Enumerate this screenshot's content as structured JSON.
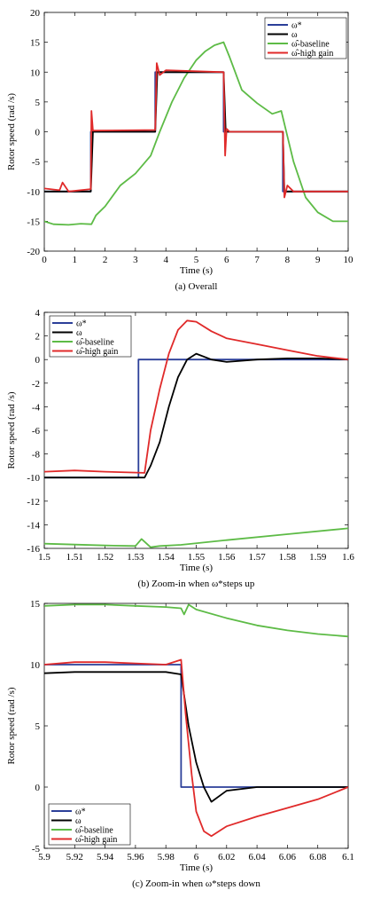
{
  "chart_data": [
    {
      "type": "line",
      "caption": "(a) Overall",
      "xlabel": "Time (s)",
      "ylabel": "Rotor speed (rad /s)",
      "xlim": [
        0,
        10
      ],
      "ylim": [
        -20,
        20
      ],
      "xticks": [
        0,
        1,
        2,
        3,
        4,
        5,
        6,
        7,
        8,
        9,
        10
      ],
      "yticks": [
        20,
        15,
        10,
        5,
        0,
        -5,
        -10,
        -15,
        -20
      ],
      "legend_position": "top-right",
      "grid": false,
      "series": [
        {
          "name": "ω*",
          "color": "#2b3f99",
          "x": [
            0,
            1.53,
            1.53,
            3.65,
            3.65,
            5.9,
            5.9,
            7.85,
            7.85,
            10
          ],
          "y": [
            -10,
            -10,
            0,
            0,
            10,
            10,
            0,
            0,
            -10,
            -10
          ]
        },
        {
          "name": "ω",
          "color": "#000000",
          "x": [
            0,
            1.53,
            1.6,
            3.65,
            3.72,
            5.9,
            5.97,
            7.85,
            7.9,
            10
          ],
          "y": [
            -10,
            -10,
            0,
            0,
            10,
            10,
            0,
            0,
            -10,
            -10
          ]
        },
        {
          "name": "ω̂-baseline",
          "color": "#5dbb46",
          "x": [
            0,
            0.3,
            0.8,
            1.2,
            1.55,
            1.7,
            2.0,
            2.5,
            3.0,
            3.5,
            3.8,
            4.2,
            4.6,
            5.0,
            5.3,
            5.6,
            5.9,
            6.1,
            6.5,
            7.0,
            7.5,
            7.8,
            8.2,
            8.6,
            9.0,
            9.5,
            10
          ],
          "y": [
            -15,
            -15.5,
            -15.6,
            -15.4,
            -15.5,
            -14,
            -12.5,
            -9,
            -7,
            -4,
            0,
            5,
            9,
            12,
            13.5,
            14.5,
            15,
            12.5,
            7,
            4.8,
            3,
            3.5,
            -5,
            -11,
            -13.5,
            -15,
            -15
          ]
        },
        {
          "name": "ω̂-high gain",
          "color": "#e02a2a",
          "x": [
            0,
            0.5,
            0.6,
            0.8,
            1.53,
            1.55,
            1.6,
            3.65,
            3.7,
            3.8,
            4.0,
            5.9,
            5.95,
            6.0,
            6.1,
            7.85,
            7.9,
            8.0,
            8.2,
            10
          ],
          "y": [
            -9.5,
            -9.8,
            -8.5,
            -10,
            -9.6,
            3.5,
            0.2,
            0.3,
            11.5,
            9.5,
            10.3,
            10,
            -4,
            0.5,
            0,
            0,
            -11,
            -9,
            -10,
            -10
          ]
        }
      ]
    },
    {
      "type": "line",
      "caption": "(b) Zoom-in when ω*steps up",
      "xlabel": "Time (s)",
      "ylabel": "Rotor speed (rad /s)",
      "xlim": [
        1.5,
        1.6
      ],
      "ylim": [
        -16,
        4
      ],
      "xticks": [
        1.5,
        1.51,
        1.52,
        1.53,
        1.54,
        1.55,
        1.56,
        1.57,
        1.58,
        1.59,
        1.6
      ],
      "yticks": [
        4,
        2,
        0,
        -2,
        -4,
        -6,
        -8,
        -10,
        -12,
        -14,
        -16
      ],
      "legend_position": "top-left",
      "grid": false,
      "series": [
        {
          "name": "ω*",
          "color": "#2b3f99",
          "x": [
            1.5,
            1.531,
            1.531,
            1.6
          ],
          "y": [
            -10,
            -10,
            0,
            0
          ]
        },
        {
          "name": "ω",
          "color": "#000000",
          "x": [
            1.5,
            1.533,
            1.535,
            1.538,
            1.541,
            1.544,
            1.547,
            1.55,
            1.555,
            1.56,
            1.57,
            1.58,
            1.59,
            1.6
          ],
          "y": [
            -10,
            -10,
            -9,
            -7,
            -4,
            -1.5,
            0,
            0.5,
            0,
            -0.2,
            0,
            0.1,
            0.1,
            0
          ]
        },
        {
          "name": "ω̂-baseline",
          "color": "#5dbb46",
          "x": [
            1.5,
            1.52,
            1.53,
            1.532,
            1.535,
            1.538,
            1.545,
            1.56,
            1.58,
            1.6
          ],
          "y": [
            -15.6,
            -15.75,
            -15.8,
            -15.2,
            -15.9,
            -15.8,
            -15.7,
            -15.3,
            -14.8,
            -14.3
          ]
        },
        {
          "name": "ω̂-high gain",
          "color": "#e02a2a",
          "x": [
            1.5,
            1.51,
            1.52,
            1.533,
            1.535,
            1.538,
            1.541,
            1.544,
            1.547,
            1.55,
            1.555,
            1.56,
            1.57,
            1.58,
            1.59,
            1.6
          ],
          "y": [
            -9.5,
            -9.4,
            -9.5,
            -9.6,
            -6,
            -2.5,
            0.5,
            2.5,
            3.3,
            3.2,
            2.4,
            1.8,
            1.3,
            0.8,
            0.3,
            0
          ]
        }
      ]
    },
    {
      "type": "line",
      "caption": "(c) Zoom-in when ω*steps down",
      "xlabel": "Time (s)",
      "ylabel": "Rotor speed (rad /s)",
      "xlim": [
        5.9,
        6.1
      ],
      "ylim": [
        -5,
        15
      ],
      "xticks": [
        5.9,
        5.92,
        5.94,
        5.96,
        5.98,
        6,
        6.02,
        6.04,
        6.06,
        6.08,
        6.1
      ],
      "yticks": [
        15,
        10,
        5,
        0,
        -5
      ],
      "legend_position": "bottom-left",
      "grid": false,
      "series": [
        {
          "name": "ω*",
          "color": "#2b3f99",
          "x": [
            5.9,
            5.99,
            5.99,
            6.1
          ],
          "y": [
            10,
            10,
            0,
            0
          ]
        },
        {
          "name": "ω",
          "color": "#000000",
          "x": [
            5.9,
            5.92,
            5.94,
            5.96,
            5.98,
            5.99,
            5.995,
            6.0,
            6.005,
            6.01,
            6.02,
            6.04,
            6.06,
            6.08,
            6.1
          ],
          "y": [
            9.3,
            9.4,
            9.4,
            9.4,
            9.4,
            9.2,
            5,
            2,
            0,
            -1.2,
            -0.3,
            0,
            0,
            0,
            0
          ]
        },
        {
          "name": "ω̂-baseline",
          "color": "#5dbb46",
          "x": [
            5.9,
            5.92,
            5.94,
            5.96,
            5.98,
            5.99,
            5.992,
            5.995,
            6.0,
            6.02,
            6.04,
            6.06,
            6.08,
            6.1
          ],
          "y": [
            14.8,
            14.9,
            14.9,
            14.8,
            14.7,
            14.6,
            14.1,
            14.9,
            14.5,
            13.8,
            13.2,
            12.8,
            12.5,
            12.3
          ]
        },
        {
          "name": "ω̂-high gain",
          "color": "#e02a2a",
          "x": [
            5.9,
            5.92,
            5.94,
            5.96,
            5.98,
            5.99,
            5.993,
            5.997,
            6.0,
            6.005,
            6.01,
            6.02,
            6.04,
            6.06,
            6.08,
            6.09,
            6.1
          ],
          "y": [
            10,
            10.2,
            10.2,
            10.1,
            10,
            10.4,
            6,
            1,
            -2,
            -3.6,
            -4,
            -3.2,
            -2.4,
            -1.7,
            -1,
            -0.5,
            0
          ]
        }
      ]
    }
  ]
}
